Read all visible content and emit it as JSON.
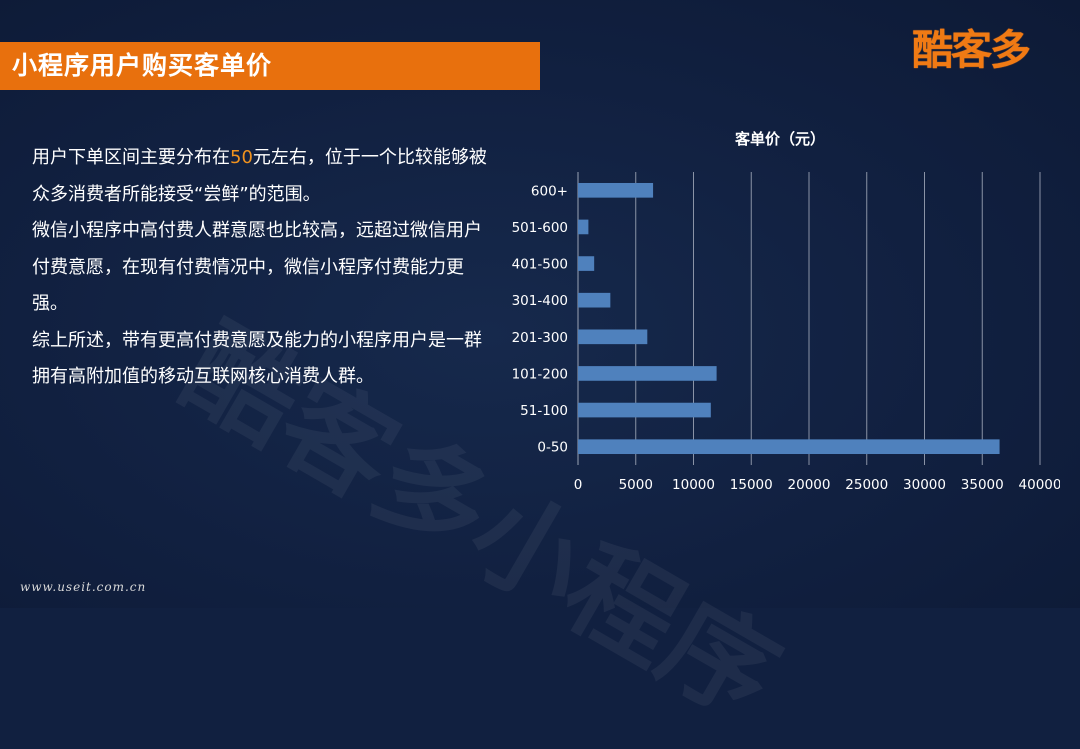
{
  "header": {
    "title": "小程序用户购买客单价",
    "logo": "酷客多"
  },
  "watermark": "酷客多小程序",
  "body": {
    "line1_before": "用户下单区间主要分布在",
    "line1_highlight": "50",
    "line1_after": "元左右，位于一个比较能够被众多消费者所能接受“尝鲜”的范围。",
    "para2": "微信小程序中高付费人群意愿也比较高，远超过微信用户付费意愿，在现有付费情况中，微信小程序付费能力更强。",
    "para3": "综上所述，带有更高付费意愿及能力的小程序用户是一群拥有高附加值的移动互联网核心消费人群。"
  },
  "footer": {
    "url": "www.useit.com.cn"
  },
  "colors": {
    "title_bar": "#e8700d",
    "highlight": "#f0921e",
    "bar": "#4f81bd",
    "background": "#112040"
  },
  "chart_data": {
    "type": "bar",
    "orientation": "horizontal",
    "title": "客单价（元）",
    "categories": [
      "600+",
      "501-600",
      "401-500",
      "301-400",
      "201-300",
      "101-200",
      "51-100",
      "0-50"
    ],
    "values": [
      6500,
      900,
      1400,
      2800,
      6000,
      12000,
      11500,
      36500
    ],
    "xlim": [
      0,
      40000
    ],
    "xticks": [
      0,
      5000,
      10000,
      15000,
      20000,
      25000,
      30000,
      35000,
      40000
    ],
    "grid": "vertical",
    "legend": "none"
  }
}
